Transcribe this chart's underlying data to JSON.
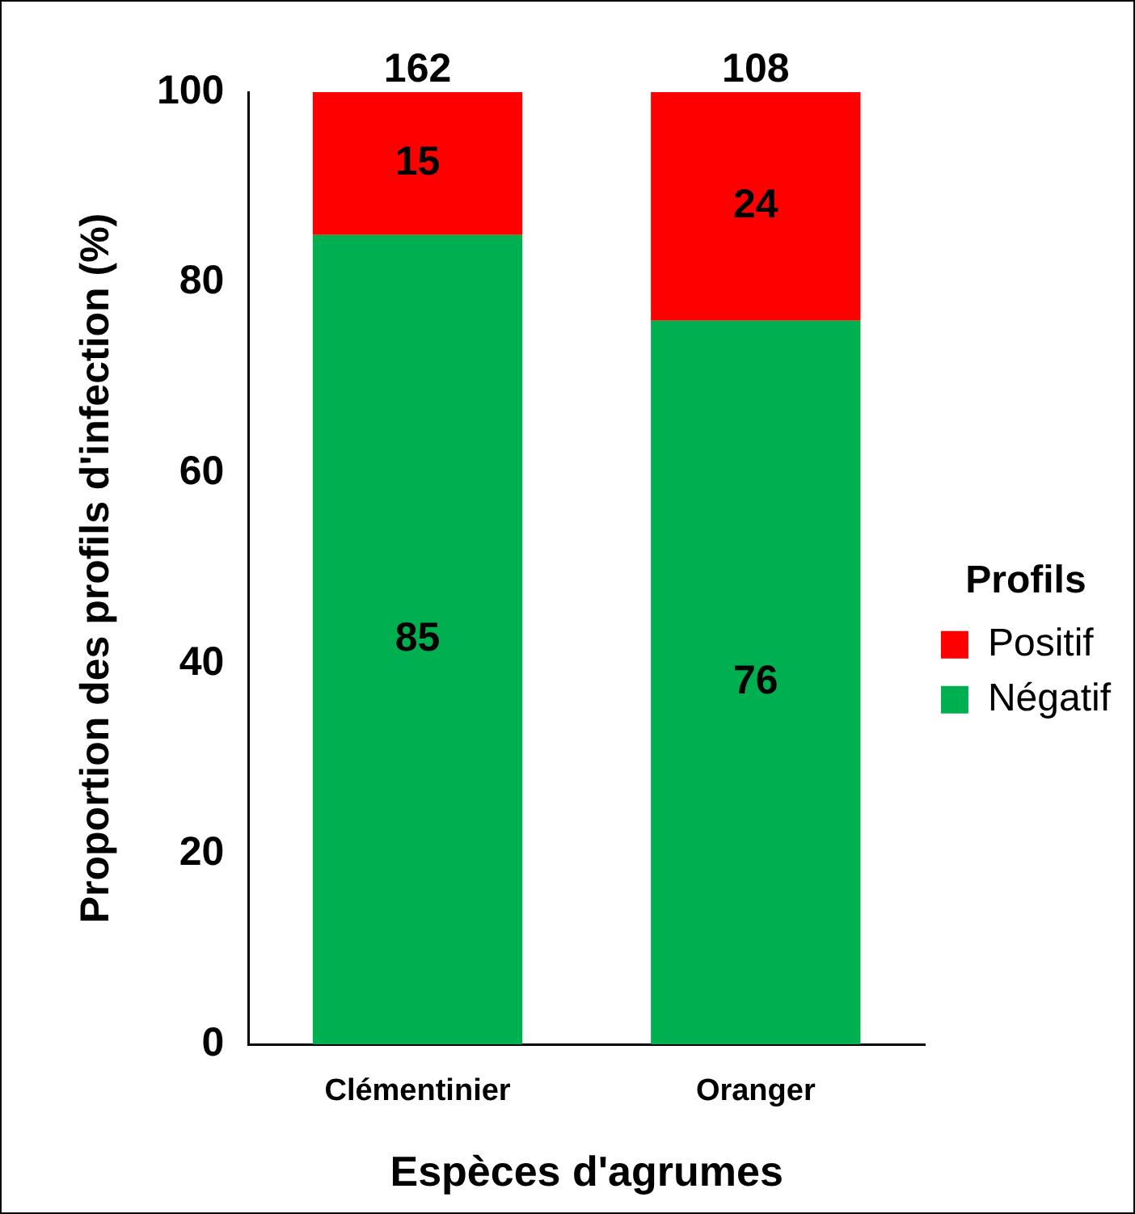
{
  "chart_data": {
    "type": "bar",
    "stacked": true,
    "xlabel": "Espèces d'agrumes",
    "ylabel": "Proportion des profils d'infection (%)",
    "legend_title": "Profils",
    "legend": "right",
    "categories": [
      "Clémentinier",
      "Oranger"
    ],
    "series": [
      {
        "name": "Négatif",
        "color": "#00b050",
        "values": [
          85,
          76
        ]
      },
      {
        "name": "Positif",
        "color": "#ff0000",
        "values": [
          15,
          24
        ]
      }
    ],
    "ylim": [
      0,
      100
    ],
    "yticks": [
      0,
      20,
      40,
      60,
      80,
      100
    ],
    "data_labels": true,
    "annotations": [
      {
        "text": "162",
        "x": "Clémentinier",
        "y": 100
      },
      {
        "text": "108",
        "x": "Oranger",
        "y": 100
      }
    ]
  }
}
